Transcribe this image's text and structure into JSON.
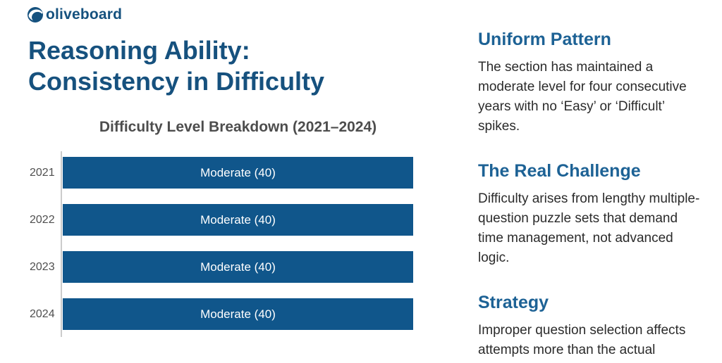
{
  "brand": {
    "logo_text": "oliveboard",
    "logo_color": "#15517e"
  },
  "page": {
    "title_line1": "Reasoning Ability:",
    "title_line2": "Consistency in Difficulty"
  },
  "chart_data": {
    "type": "bar",
    "orientation": "horizontal",
    "title": "Difficulty Level Breakdown (2021–2024)",
    "categories": [
      "2021",
      "2022",
      "2023",
      "2024"
    ],
    "values": [
      40,
      40,
      40,
      40
    ],
    "bar_labels": [
      "Moderate (40)",
      "Moderate (40)",
      "Moderate (40)",
      "Moderate (40)"
    ],
    "xlim": [
      0,
      40
    ],
    "xlabel": "",
    "ylabel": "",
    "grid": false,
    "legend": false,
    "bar_color": "#10568b",
    "bar_label_color": "#ffffff",
    "axis_color": "#cccccc"
  },
  "sections": [
    {
      "heading": "Uniform Pattern",
      "body": "The section has maintained a moderate level for four consecutive years with no ‘Easy’ or ‘Difficult’ spikes."
    },
    {
      "heading": "The Real Challenge",
      "body": "Difficulty arises from lengthy multiple-question puzzle sets that demand time management, not advanced logic."
    },
    {
      "heading": "Strategy",
      "body": "Improper question selection affects attempts more than the actual question difficulty."
    }
  ],
  "colors": {
    "title_blue": "#16517e",
    "heading_blue": "#1d6295",
    "chart_title_gray": "#4d4d4d",
    "year_label_gray": "#4f4f4f",
    "body_text": "#2b2b2b",
    "background": "#ffffff"
  }
}
